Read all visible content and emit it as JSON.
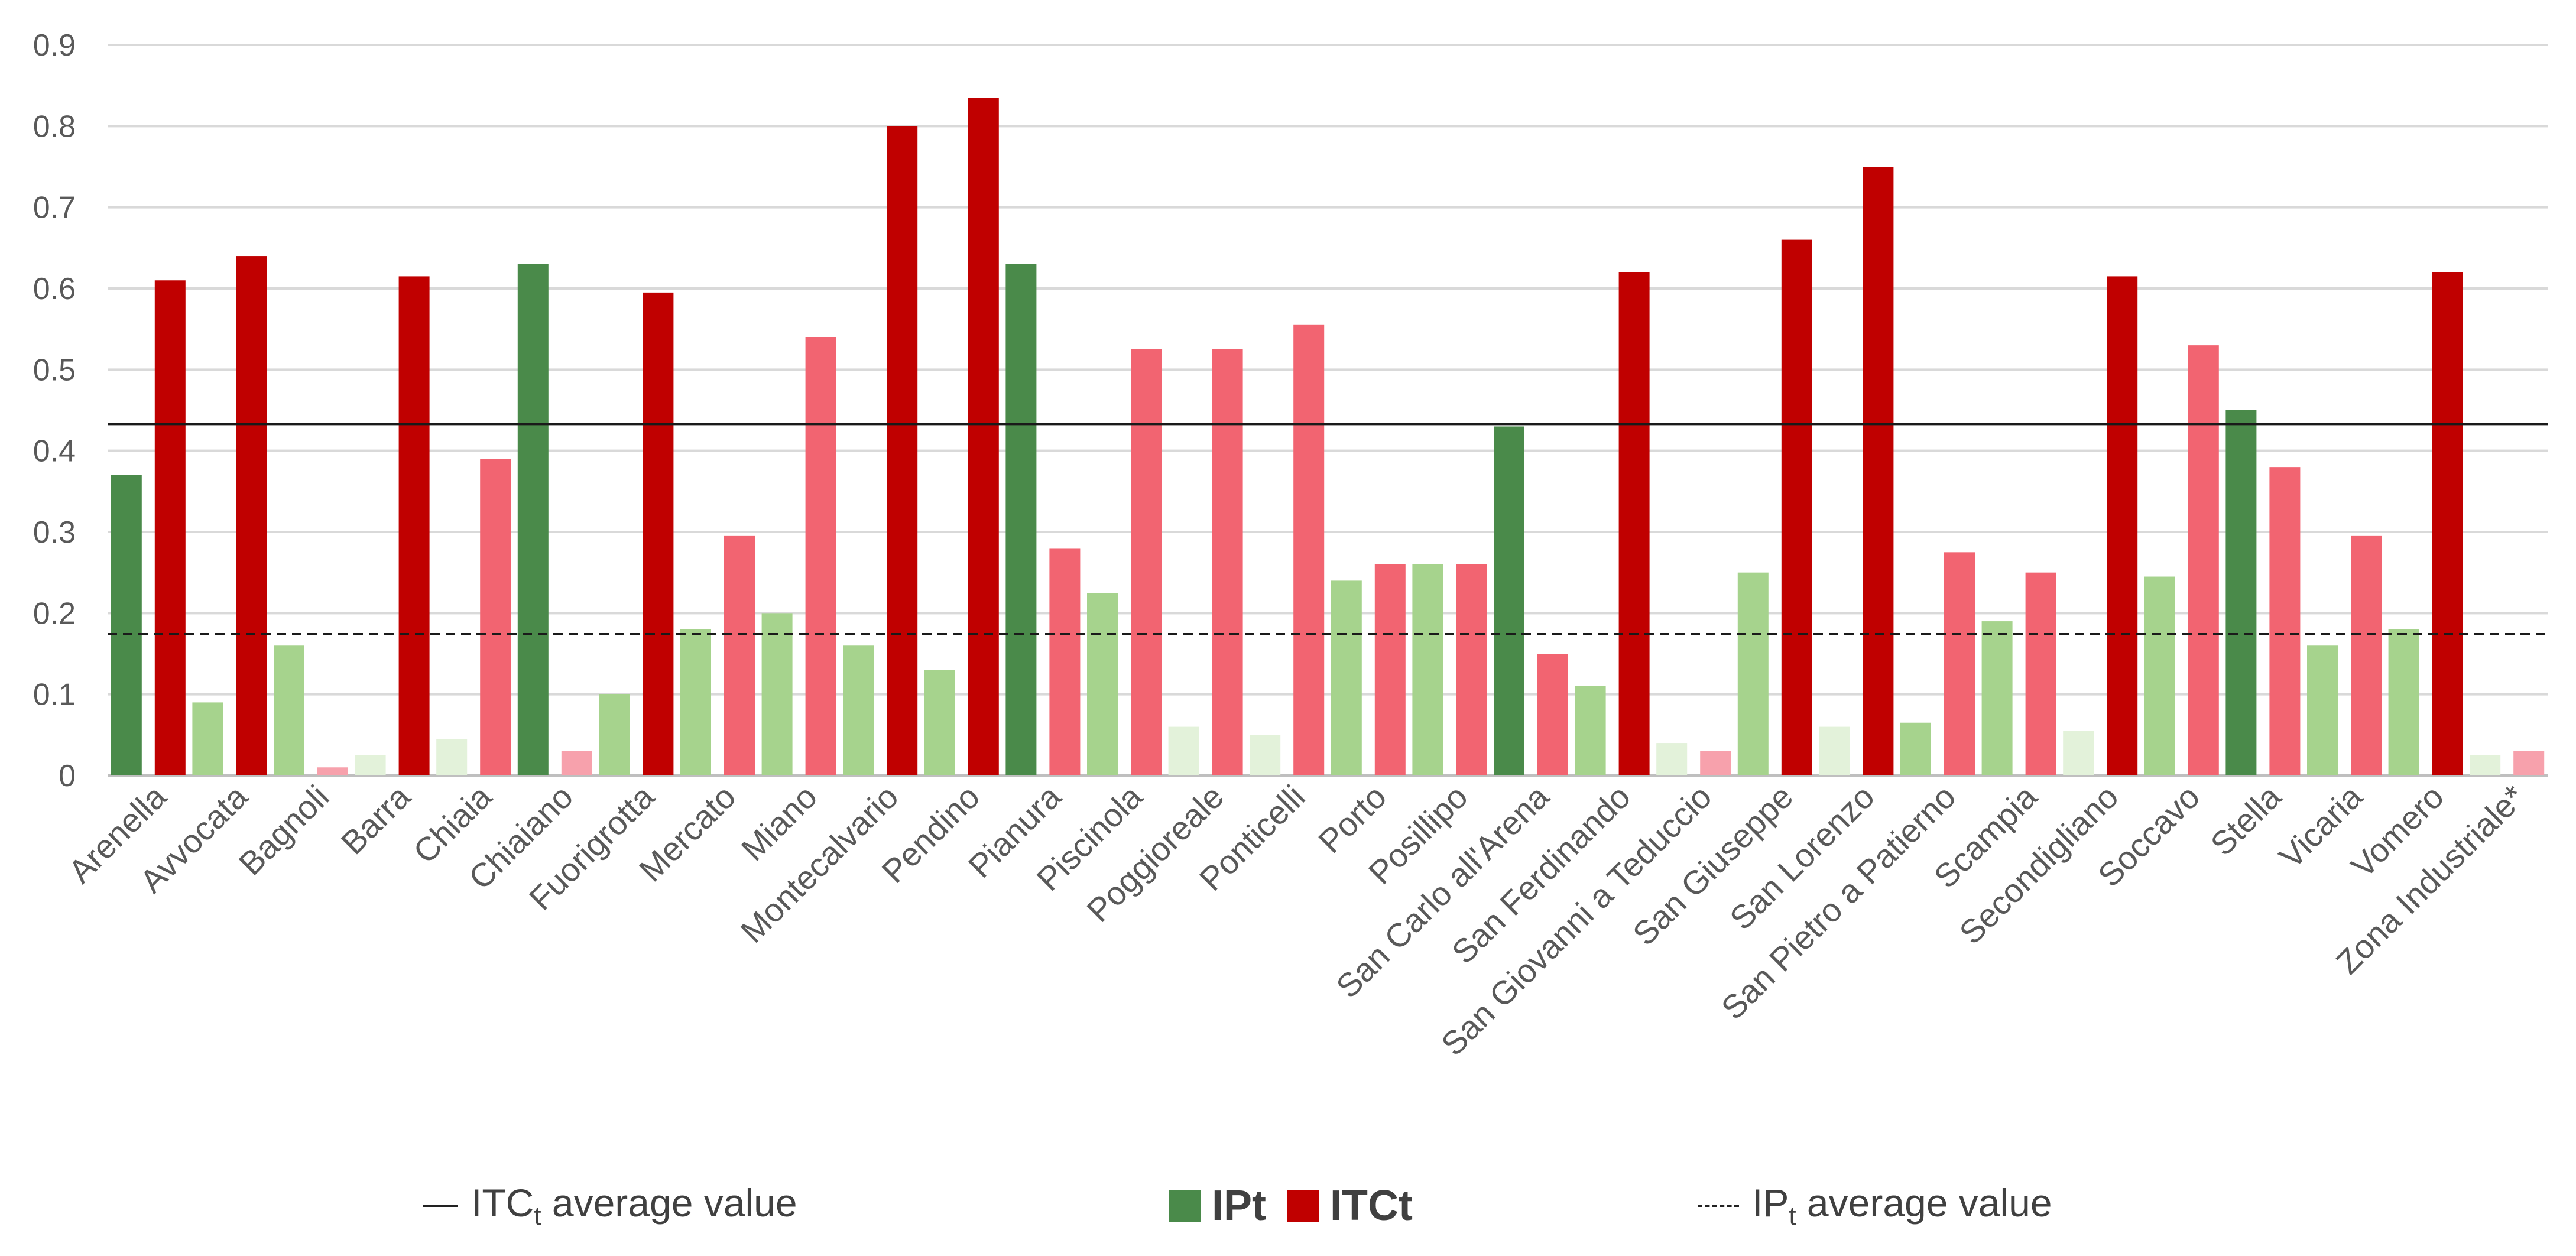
{
  "chart_data": {
    "type": "bar",
    "title": "",
    "xlabel": "",
    "ylabel": "",
    "ylim": [
      0,
      0.9
    ],
    "y_ticks": [
      "0",
      "0.1",
      "0.2",
      "0.3",
      "0.4",
      "0.5",
      "0.6",
      "0.7",
      "0.8",
      "0.9"
    ],
    "categories": [
      "Arenella",
      "Avvocata",
      "Bagnoli",
      "Barra",
      "Chiaia",
      "Chiaiano",
      "Fuorigrotta",
      "Mercato",
      "Miano",
      "Montecalvario",
      "Pendino",
      "Pianura",
      "Piscinola",
      "Poggioreale",
      "Ponticelli",
      "Porto",
      "Posillipo",
      "San Carlo all'Arena",
      "San Ferdinando",
      "San Giovanni a Teduccio",
      "San Giuseppe",
      "San Lorenzo",
      "San Pietro a Patierno",
      "Scampia",
      "Secondigliano",
      "Soccavo",
      "Stella",
      "Vicaria",
      "Vomero",
      "Zona Industriale*"
    ],
    "series": [
      {
        "name": "IPt",
        "values": [
          0.37,
          0.09,
          0.16,
          0.025,
          0.045,
          0.63,
          0.1,
          0.18,
          0.2,
          0.16,
          0.13,
          0.63,
          0.225,
          0.06,
          0.05,
          0.24,
          0.26,
          0.43,
          0.11,
          0.04,
          0.25,
          0.06,
          0.065,
          0.19,
          0.055,
          0.245,
          0.45,
          0.16,
          0.18,
          0.025
        ]
      },
      {
        "name": "ITCt",
        "values": [
          0.61,
          0.64,
          0.01,
          0.615,
          0.39,
          0.03,
          0.595,
          0.295,
          0.54,
          0.8,
          0.835,
          0.28,
          0.525,
          0.525,
          0.555,
          0.26,
          0.26,
          0.15,
          0.62,
          0.03,
          0.66,
          0.75,
          0.275,
          0.25,
          0.615,
          0.53,
          0.38,
          0.295,
          0.62,
          0.03
        ]
      }
    ],
    "reference_lines": [
      {
        "name": "ITCt average value",
        "value": 0.433,
        "style": "solid"
      },
      {
        "name": "IPt average value",
        "value": 0.174,
        "style": "dashed"
      }
    ],
    "colors": {
      "ipt_dark": "#4a8a4a",
      "ipt_mid": "#a6d38d",
      "ipt_light": "#e3f2da",
      "itc_dark": "#c00000",
      "itc_mid": "#f26471",
      "itc_light": "#f7a1ac",
      "grid": "#d9d9d9",
      "axis_text": "#595959"
    }
  },
  "legend": {
    "itc_avg_prefix": "ITC",
    "itc_avg_sub": "t",
    "itc_avg_suffix": " average value",
    "ipt_label": "IPt",
    "itct_label": "ITCt",
    "ipt_avg_prefix": "IP",
    "ipt_avg_sub": "t",
    "ipt_avg_suffix": " average value"
  }
}
